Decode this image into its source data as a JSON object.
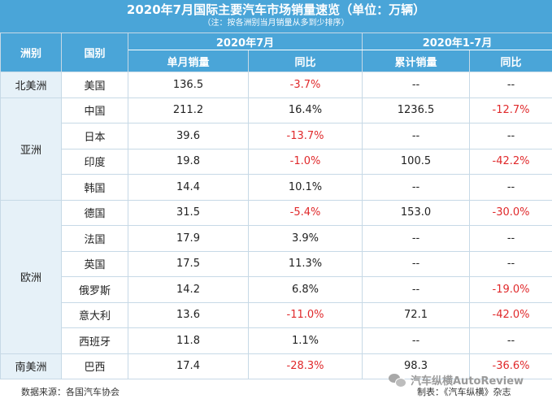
{
  "title": "2020年7月国际主要汽车市场销量速览（单位：万辆）",
  "note": "（注：按各洲别当月销量从多到少排序）",
  "headers": {
    "continent": "洲别",
    "country": "国别",
    "group_month": "2020年7月",
    "group_ytd": "2020年1-7月",
    "monthly_sales": "单月销量",
    "yoy": "同比",
    "cumulative_sales": "累计销量",
    "yoy_ytd": "同比"
  },
  "continents": {
    "north_america": "北美洲",
    "asia": "亚洲",
    "europe": "欧洲",
    "south_america": "南美洲"
  },
  "rows": [
    {
      "country": "美国",
      "monthly": "136.5",
      "yoy": "-3.7%",
      "cumulative": "--",
      "yoy_ytd": "--"
    },
    {
      "country": "中国",
      "monthly": "211.2",
      "yoy": "16.4%",
      "cumulative": "1236.5",
      "yoy_ytd": "-12.7%"
    },
    {
      "country": "日本",
      "monthly": "39.6",
      "yoy": "-13.7%",
      "cumulative": "--",
      "yoy_ytd": "--"
    },
    {
      "country": "印度",
      "monthly": "19.8",
      "yoy": "-1.0%",
      "cumulative": "100.5",
      "yoy_ytd": "-42.2%"
    },
    {
      "country": "韩国",
      "monthly": "14.4",
      "yoy": "10.1%",
      "cumulative": "--",
      "yoy_ytd": "--"
    },
    {
      "country": "德国",
      "monthly": "31.5",
      "yoy": "-5.4%",
      "cumulative": "153.0",
      "yoy_ytd": "-30.0%"
    },
    {
      "country": "法国",
      "monthly": "17.9",
      "yoy": "3.9%",
      "cumulative": "--",
      "yoy_ytd": "--"
    },
    {
      "country": "英国",
      "monthly": "17.5",
      "yoy": "11.3%",
      "cumulative": "--",
      "yoy_ytd": "--"
    },
    {
      "country": "俄罗斯",
      "monthly": "14.2",
      "yoy": "6.8%",
      "cumulative": "--",
      "yoy_ytd": "-19.0%"
    },
    {
      "country": "意大利",
      "monthly": "13.6",
      "yoy": "-11.0%",
      "cumulative": "72.1",
      "yoy_ytd": "-42.0%"
    },
    {
      "country": "西班牙",
      "monthly": "11.8",
      "yoy": "1.1%",
      "cumulative": "--",
      "yoy_ytd": "--"
    },
    {
      "country": "巴西",
      "monthly": "17.4",
      "yoy": "-28.3%",
      "cumulative": "98.3",
      "yoy_ytd": "-36.6%"
    }
  ],
  "footer": {
    "source": "数据来源：各国汽车协会",
    "maker": "制表：《汽车纵横》杂志",
    "watermark": "汽车纵横AutoReview"
  },
  "colors": {
    "header_bg": "#4aa5d8",
    "continent_bg": "#e6f1f8",
    "negative": "#e0292b"
  }
}
